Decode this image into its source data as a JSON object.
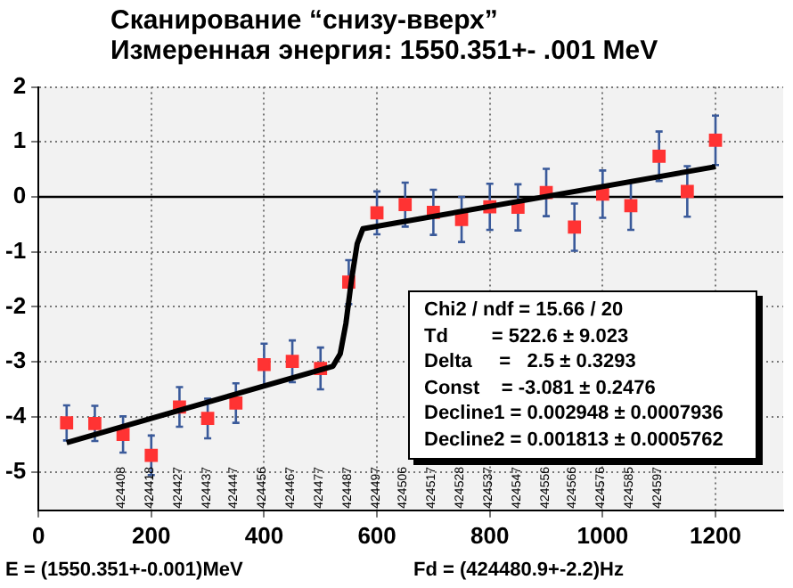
{
  "chart_data": {
    "type": "scatter",
    "title": "Сканирование “снизу-вверх”",
    "subtitle": "Измеренная энергия: 1550.351+-  .001 MeV",
    "xlabel": "Fd = (424480.9+-2.2)Hz",
    "xlim": [
      0,
      1320
    ],
    "xticks": [
      0,
      200,
      400,
      600,
      800,
      1000,
      1200
    ],
    "ylim": [
      -5.7,
      2
    ],
    "yticks": [
      -5,
      -4,
      -3,
      -2,
      -1,
      0,
      1,
      2
    ],
    "grid": true,
    "legend": false,
    "ref_lines": [
      {
        "axis": "y",
        "value": 0,
        "color": "#000000"
      }
    ],
    "series": [
      {
        "type": "scatter",
        "color": "#ff3333",
        "marker": "square",
        "x": [
          50,
          100,
          150,
          200,
          250,
          300,
          350,
          400,
          450,
          500,
          550,
          600,
          650,
          700,
          750,
          800,
          850,
          900,
          950,
          1000,
          1050,
          1100,
          1150,
          1200
        ],
        "values": [
          -4.11,
          -4.12,
          -4.32,
          -4.7,
          -3.82,
          -4.03,
          -3.75,
          -3.05,
          -2.99,
          -3.12,
          -1.55,
          -0.29,
          -0.14,
          -0.28,
          -0.41,
          -0.18,
          -0.19,
          0.08,
          -0.55,
          0.05,
          -0.16,
          0.74,
          0.1,
          1.03
        ],
        "errors": [
          0.32,
          0.32,
          0.33,
          0.36,
          0.36,
          0.36,
          0.36,
          0.38,
          0.38,
          0.38,
          0.4,
          0.39,
          0.4,
          0.41,
          0.41,
          0.42,
          0.42,
          0.43,
          0.43,
          0.43,
          0.44,
          0.45,
          0.46,
          0.45
        ]
      },
      {
        "type": "line",
        "color": "#000000",
        "marker": "none",
        "x": [
          50,
          522,
          535,
          545,
          555,
          565,
          575,
          1200
        ],
        "values": [
          -4.47,
          -3.08,
          -2.85,
          -2.3,
          -1.5,
          -0.85,
          -0.58,
          0.55
        ]
      }
    ],
    "annotations": [
      "Chi2 / ndf = 15.66 / 20",
      "Td        = 522.6 ± 9.023",
      "Delta     =   2.5 ± 0.3293",
      "Const    = -3.081 ± 0.2476",
      "Decline1 = 0.002948 ± 0.0007936",
      "Decline2 = 0.001813 ± 0.0005762",
      "E = (1550.351+-0.001)MeV",
      "424408",
      "424418",
      "424427",
      "424437",
      "424447",
      "424456",
      "424467",
      "424477",
      "424487",
      "424497",
      "424506",
      "424517",
      "424528",
      "424537",
      "424547",
      "424556",
      "424566",
      "424576",
      "424585",
      "424597"
    ]
  }
}
